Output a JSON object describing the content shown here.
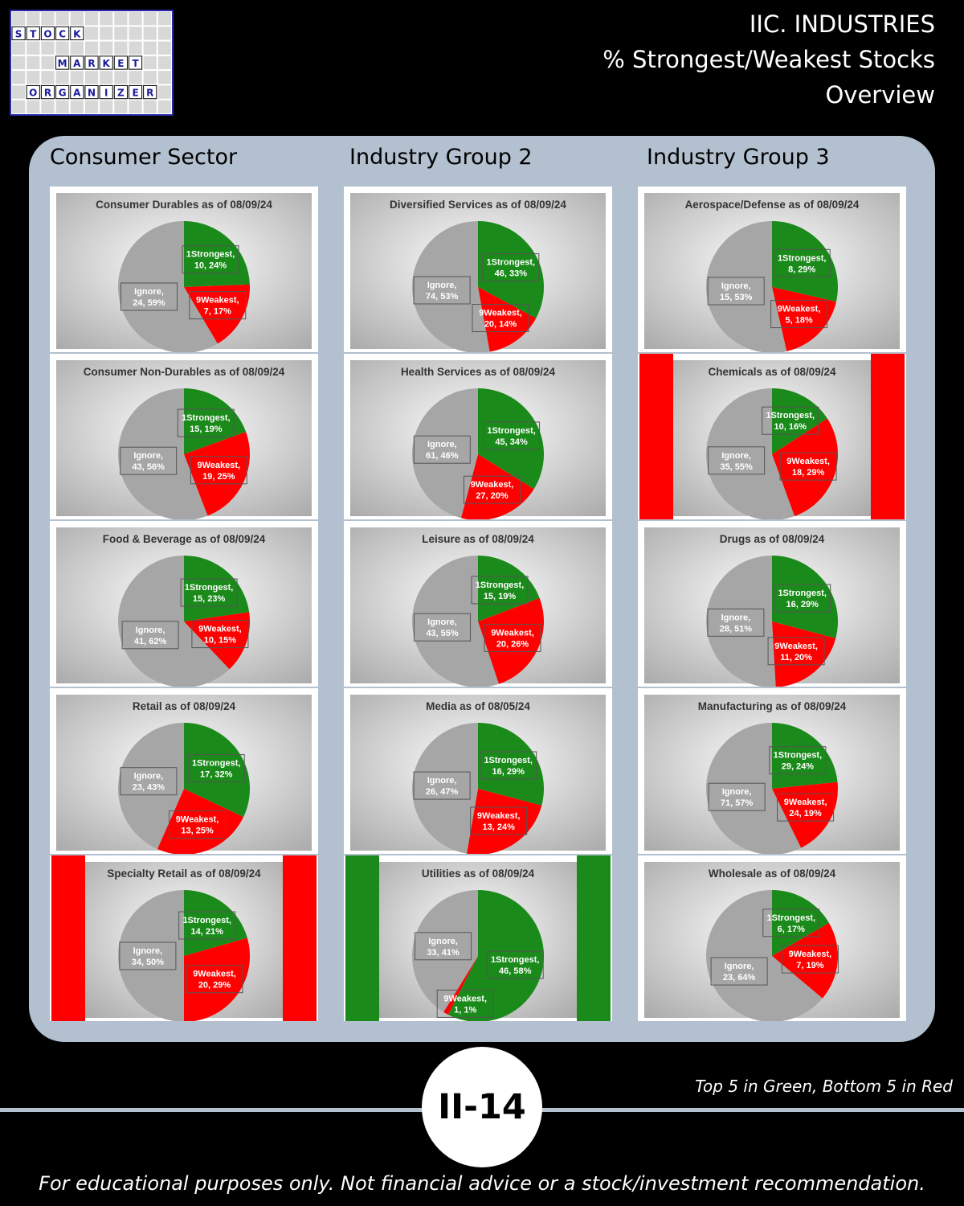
{
  "logo": {
    "rows": [
      {
        "letters": [
          "S",
          "T",
          "O",
          "C",
          "K"
        ],
        "start": 0
      },
      {
        "letters": [
          "M",
          "A",
          "R",
          "K",
          "E",
          "T"
        ],
        "start": 3
      },
      {
        "letters": [
          "O",
          "R",
          "G",
          "A",
          "N",
          "I",
          "Z",
          "E",
          "R"
        ],
        "start": 1
      }
    ]
  },
  "header": {
    "line1": "IIC. INDUSTRIES",
    "line2": "% Strongest/Weakest Stocks",
    "line3": "Overview"
  },
  "columns": [
    "Consumer Sector",
    "Industry Group 2",
    "Industry Group 3"
  ],
  "colors": {
    "strongest": "#1a8a1a",
    "weakest": "#ff0000",
    "ignore": "#a6a6a6",
    "panel": "#b3c0cf"
  },
  "chart_data": [
    {
      "type": "pie",
      "title": "Consumer Durables as of 08/09/24",
      "highlight": "",
      "slices": [
        {
          "name": "1Strongest",
          "value": 10,
          "pct": "24%"
        },
        {
          "name": "9Weakest",
          "value": 7,
          "pct": "17%"
        },
        {
          "name": "Ignore",
          "value": 24,
          "pct": "59%"
        }
      ]
    },
    {
      "type": "pie",
      "title": "Diversified Services as of 08/09/24",
      "highlight": "",
      "slices": [
        {
          "name": "1Strongest",
          "value": 46,
          "pct": "33%"
        },
        {
          "name": "9Weakest",
          "value": 20,
          "pct": "14%"
        },
        {
          "name": "Ignore",
          "value": 74,
          "pct": "53%"
        }
      ]
    },
    {
      "type": "pie",
      "title": "Aerospace/Defense as of 08/09/24",
      "highlight": "",
      "slices": [
        {
          "name": "1Strongest",
          "value": 8,
          "pct": "29%"
        },
        {
          "name": "9Weakest",
          "value": 5,
          "pct": "18%"
        },
        {
          "name": "Ignore",
          "value": 15,
          "pct": "53%"
        }
      ]
    },
    {
      "type": "pie",
      "title": "Consumer  Non-Durables  as of 08/09/24",
      "highlight": "",
      "slices": [
        {
          "name": "1Strongest",
          "value": 15,
          "pct": "19%"
        },
        {
          "name": "9Weakest",
          "value": 19,
          "pct": "25%"
        },
        {
          "name": "Ignore",
          "value": 43,
          "pct": "56%"
        }
      ]
    },
    {
      "type": "pie",
      "title": "Health Services as of 08/09/24",
      "highlight": "",
      "slices": [
        {
          "name": "1Strongest",
          "value": 45,
          "pct": "34%"
        },
        {
          "name": "9Weakest",
          "value": 27,
          "pct": "20%"
        },
        {
          "name": "Ignore",
          "value": 61,
          "pct": "46%"
        }
      ]
    },
    {
      "type": "pie",
      "title": "Chemicals as of 08/09/24",
      "highlight": "weakest",
      "slices": [
        {
          "name": "1Strongest",
          "value": 10,
          "pct": "16%"
        },
        {
          "name": "9Weakest",
          "value": 18,
          "pct": "29%"
        },
        {
          "name": "Ignore",
          "value": 35,
          "pct": "55%"
        }
      ]
    },
    {
      "type": "pie",
      "title": "Food & Beverage as of 08/09/24",
      "highlight": "",
      "slices": [
        {
          "name": "1Strongest",
          "value": 15,
          "pct": "23%"
        },
        {
          "name": "9Weakest",
          "value": 10,
          "pct": "15%"
        },
        {
          "name": "Ignore",
          "value": 41,
          "pct": "62%"
        }
      ]
    },
    {
      "type": "pie",
      "title": "Leisure as of 08/09/24",
      "highlight": "",
      "slices": [
        {
          "name": "1Strongest",
          "value": 15,
          "pct": "19%"
        },
        {
          "name": "9Weakest",
          "value": 20,
          "pct": "26%"
        },
        {
          "name": "Ignore",
          "value": 43,
          "pct": "55%"
        }
      ]
    },
    {
      "type": "pie",
      "title": "Drugs as of 08/09/24",
      "highlight": "",
      "slices": [
        {
          "name": "1Strongest",
          "value": 16,
          "pct": "29%"
        },
        {
          "name": "9Weakest",
          "value": 11,
          "pct": "20%"
        },
        {
          "name": "Ignore",
          "value": 28,
          "pct": "51%"
        }
      ]
    },
    {
      "type": "pie",
      "title": "Retail as of 08/09/24",
      "highlight": "",
      "slices": [
        {
          "name": "1Strongest",
          "value": 17,
          "pct": "32%"
        },
        {
          "name": "9Weakest",
          "value": 13,
          "pct": "25%"
        },
        {
          "name": "Ignore",
          "value": 23,
          "pct": "43%"
        }
      ]
    },
    {
      "type": "pie",
      "title": "Media as of 08/05/24",
      "highlight": "",
      "slices": [
        {
          "name": "1Strongest",
          "value": 16,
          "pct": "29%"
        },
        {
          "name": "9Weakest",
          "value": 13,
          "pct": "24%"
        },
        {
          "name": "Ignore",
          "value": 26,
          "pct": "47%"
        }
      ]
    },
    {
      "type": "pie",
      "title": "Manufacturing as of 08/09/24",
      "highlight": "",
      "slices": [
        {
          "name": "1Strongest",
          "value": 29,
          "pct": "24%"
        },
        {
          "name": "9Weakest",
          "value": 24,
          "pct": "19%"
        },
        {
          "name": "Ignore",
          "value": 71,
          "pct": "57%"
        }
      ]
    },
    {
      "type": "pie",
      "title": "Specialty Retail as of 08/09/24",
      "highlight": "weakest",
      "slices": [
        {
          "name": "1Strongest",
          "value": 14,
          "pct": "21%"
        },
        {
          "name": "9Weakest",
          "value": 20,
          "pct": "29%"
        },
        {
          "name": "Ignore",
          "value": 34,
          "pct": "50%"
        }
      ]
    },
    {
      "type": "pie",
      "title": "Utilities as of 08/09/24",
      "highlight": "strongest",
      "slices": [
        {
          "name": "1Strongest",
          "value": 46,
          "pct": "58%"
        },
        {
          "name": "9Weakest",
          "value": 1,
          "pct": "1%"
        },
        {
          "name": "Ignore",
          "value": 33,
          "pct": "41%"
        }
      ]
    },
    {
      "type": "pie",
      "title": "Wholesale as of 08/09/24",
      "highlight": "",
      "slices": [
        {
          "name": "1Strongest",
          "value": 6,
          "pct": "17%"
        },
        {
          "name": "9Weakest",
          "value": 7,
          "pct": "19%"
        },
        {
          "name": "Ignore",
          "value": 23,
          "pct": "64%"
        }
      ]
    }
  ],
  "footer": {
    "badge": "II-14",
    "note": "Top 5 in Green, Bottom 5 in Red",
    "disclaimer": "For educational purposes only. Not financial advice or a stock/investment recommendation."
  }
}
